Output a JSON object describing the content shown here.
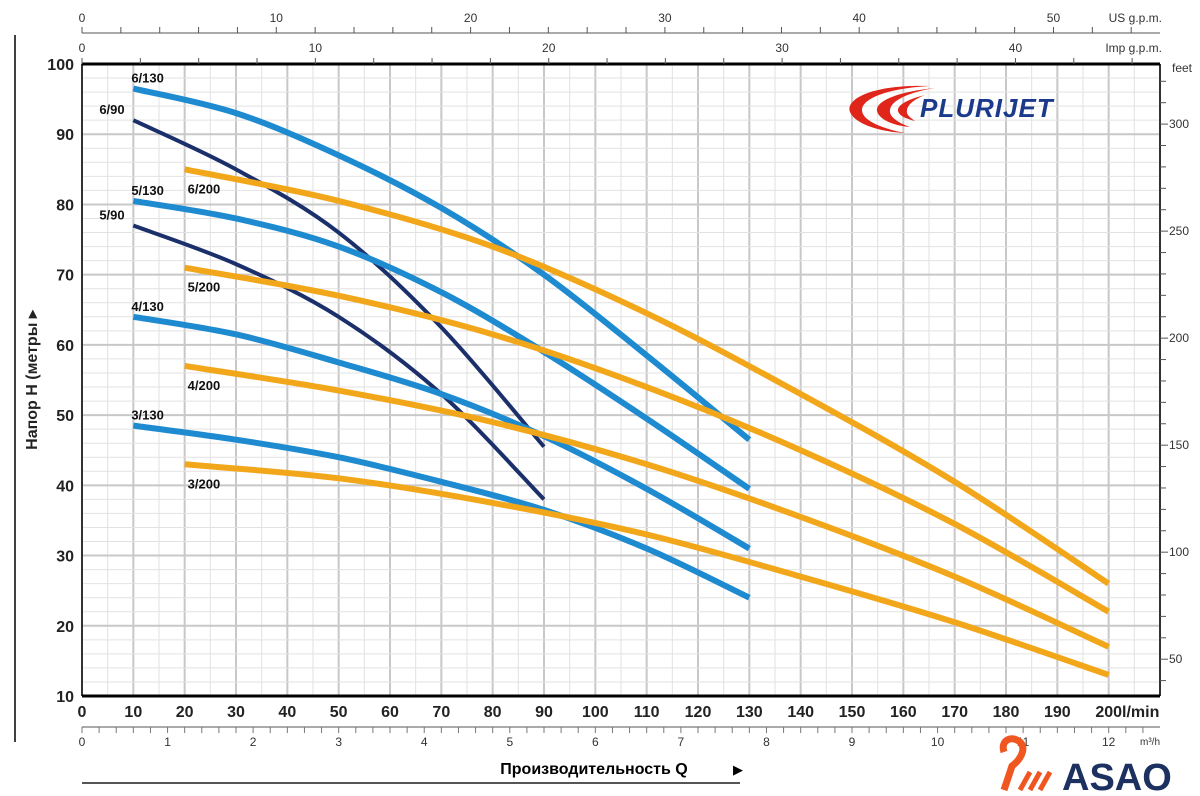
{
  "chart_data": {
    "type": "line",
    "title": "",
    "xlabel": "Производительность Q",
    "ylabel": "Напор H (метры",
    "x_unit": "l/min",
    "xlim": [
      0,
      210
    ],
    "ylim": [
      10,
      100
    ],
    "x_ticks": [
      0,
      10,
      20,
      30,
      40,
      50,
      60,
      70,
      80,
      90,
      100,
      110,
      120,
      130,
      140,
      150,
      160,
      170,
      180,
      190,
      200
    ],
    "y_ticks": [
      10,
      20,
      30,
      40,
      50,
      60,
      70,
      80,
      90,
      100
    ],
    "grid": true,
    "secondary_axes": {
      "us_gpm": {
        "label": "US g.p.m.",
        "ticks": [
          0,
          10,
          20,
          30,
          40,
          50
        ]
      },
      "imp_gpm": {
        "label": "Imp g.p.m.",
        "ticks": [
          0,
          10,
          20,
          30,
          40
        ]
      },
      "m3h": {
        "label": "m³/h",
        "ticks": [
          0,
          1,
          2,
          3,
          4,
          5,
          6,
          7,
          8,
          9,
          10,
          11,
          12
        ]
      },
      "feet": {
        "label": "feet",
        "ticks": [
          50,
          100,
          150,
          200,
          250,
          300
        ]
      }
    },
    "series": [
      {
        "name": "6/130",
        "color": "#1e8bd0",
        "points": [
          [
            10,
            96.5
          ],
          [
            30,
            93
          ],
          [
            50,
            87
          ],
          [
            70,
            79.5
          ],
          [
            90,
            70
          ],
          [
            110,
            58.5
          ],
          [
            130,
            46.5
          ]
        ]
      },
      {
        "name": "6/90",
        "color": "#1b2f6b",
        "points": [
          [
            10,
            92
          ],
          [
            30,
            85
          ],
          [
            50,
            76
          ],
          [
            70,
            62.5
          ],
          [
            90,
            45.5
          ]
        ]
      },
      {
        "name": "5/130",
        "color": "#1e8bd0",
        "points": [
          [
            10,
            80.5
          ],
          [
            30,
            78
          ],
          [
            50,
            74
          ],
          [
            70,
            67.5
          ],
          [
            90,
            59
          ],
          [
            110,
            49.5
          ],
          [
            130,
            39.5
          ]
        ]
      },
      {
        "name": "5/90",
        "color": "#1b2f6b",
        "points": [
          [
            10,
            77
          ],
          [
            30,
            71.5
          ],
          [
            50,
            64
          ],
          [
            70,
            53
          ],
          [
            90,
            38
          ]
        ]
      },
      {
        "name": "4/130",
        "color": "#1e8bd0",
        "points": [
          [
            10,
            64
          ],
          [
            30,
            61.5
          ],
          [
            50,
            57.5
          ],
          [
            70,
            53
          ],
          [
            90,
            47
          ],
          [
            110,
            39.5
          ],
          [
            130,
            31
          ]
        ]
      },
      {
        "name": "3/130",
        "color": "#1e8bd0",
        "points": [
          [
            10,
            48.5
          ],
          [
            30,
            46.5
          ],
          [
            50,
            44
          ],
          [
            70,
            40.5
          ],
          [
            90,
            36.5
          ],
          [
            110,
            31
          ],
          [
            130,
            24
          ]
        ]
      },
      {
        "name": "6/200",
        "color": "#f2a71b",
        "points": [
          [
            20,
            85
          ],
          [
            50,
            80.5
          ],
          [
            80,
            74
          ],
          [
            110,
            64.5
          ],
          [
            140,
            53
          ],
          [
            170,
            40.5
          ],
          [
            200,
            26
          ]
        ]
      },
      {
        "name": "5/200",
        "color": "#f2a71b",
        "points": [
          [
            20,
            71
          ],
          [
            50,
            67
          ],
          [
            80,
            61.5
          ],
          [
            110,
            54
          ],
          [
            140,
            45
          ],
          [
            170,
            34.5
          ],
          [
            200,
            22
          ]
        ]
      },
      {
        "name": "4/200",
        "color": "#f2a71b",
        "points": [
          [
            20,
            57
          ],
          [
            50,
            53.5
          ],
          [
            80,
            49
          ],
          [
            110,
            43
          ],
          [
            140,
            35.5
          ],
          [
            170,
            27
          ],
          [
            200,
            17
          ]
        ]
      },
      {
        "name": "3/200",
        "color": "#f2a71b",
        "points": [
          [
            20,
            43
          ],
          [
            50,
            41
          ],
          [
            80,
            37.5
          ],
          [
            110,
            33
          ],
          [
            140,
            27
          ],
          [
            170,
            20.5
          ],
          [
            200,
            13
          ]
        ]
      }
    ]
  },
  "brand": {
    "logo": "PLURIJET",
    "watermark": "ASAO",
    "logo_red": "#e0251b",
    "logo_blue": "#1b3a8c",
    "watermark_orange": "#f0561f",
    "watermark_navy": "#1d3160"
  }
}
